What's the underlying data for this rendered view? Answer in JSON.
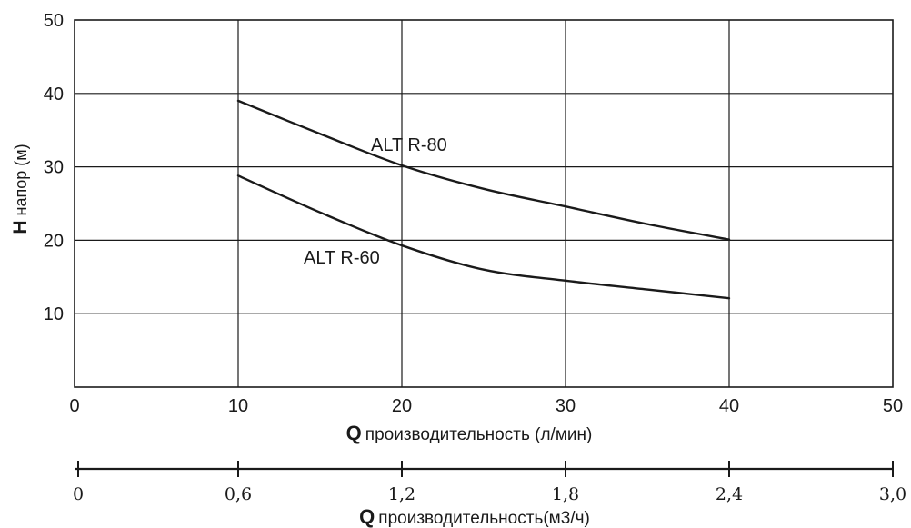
{
  "chart_data": {
    "type": "line",
    "xlabel_prefix": "Q",
    "xlabel": "производительность (л/мин)",
    "ylabel_prefix": "H",
    "ylabel": "напор (м)",
    "xlim": [
      0,
      50
    ],
    "ylim": [
      0,
      50
    ],
    "x_ticks": [
      "0",
      "10",
      "20",
      "30",
      "40",
      "50"
    ],
    "y_ticks": [
      "10",
      "20",
      "30",
      "40",
      "50"
    ],
    "grid": true,
    "series": [
      {
        "name": "ALT R-80",
        "x": [
          10,
          15,
          20,
          25,
          30,
          35,
          40
        ],
        "y": [
          39,
          34.5,
          30.2,
          27,
          24.6,
          22.2,
          20.1
        ]
      },
      {
        "name": "ALT R-60",
        "x": [
          10,
          15,
          20,
          25,
          30,
          35,
          40
        ],
        "y": [
          28.8,
          23.8,
          19.3,
          16,
          14.5,
          13.3,
          12.1
        ]
      }
    ],
    "secondary_axis": {
      "xlabel_prefix": "Q",
      "xlabel": "производительность(м3/ч)",
      "lim": [
        0,
        3.0
      ],
      "ticks": [
        "0",
        "0,6",
        "1,2",
        "1,8",
        "2,4",
        "3,0"
      ]
    }
  }
}
